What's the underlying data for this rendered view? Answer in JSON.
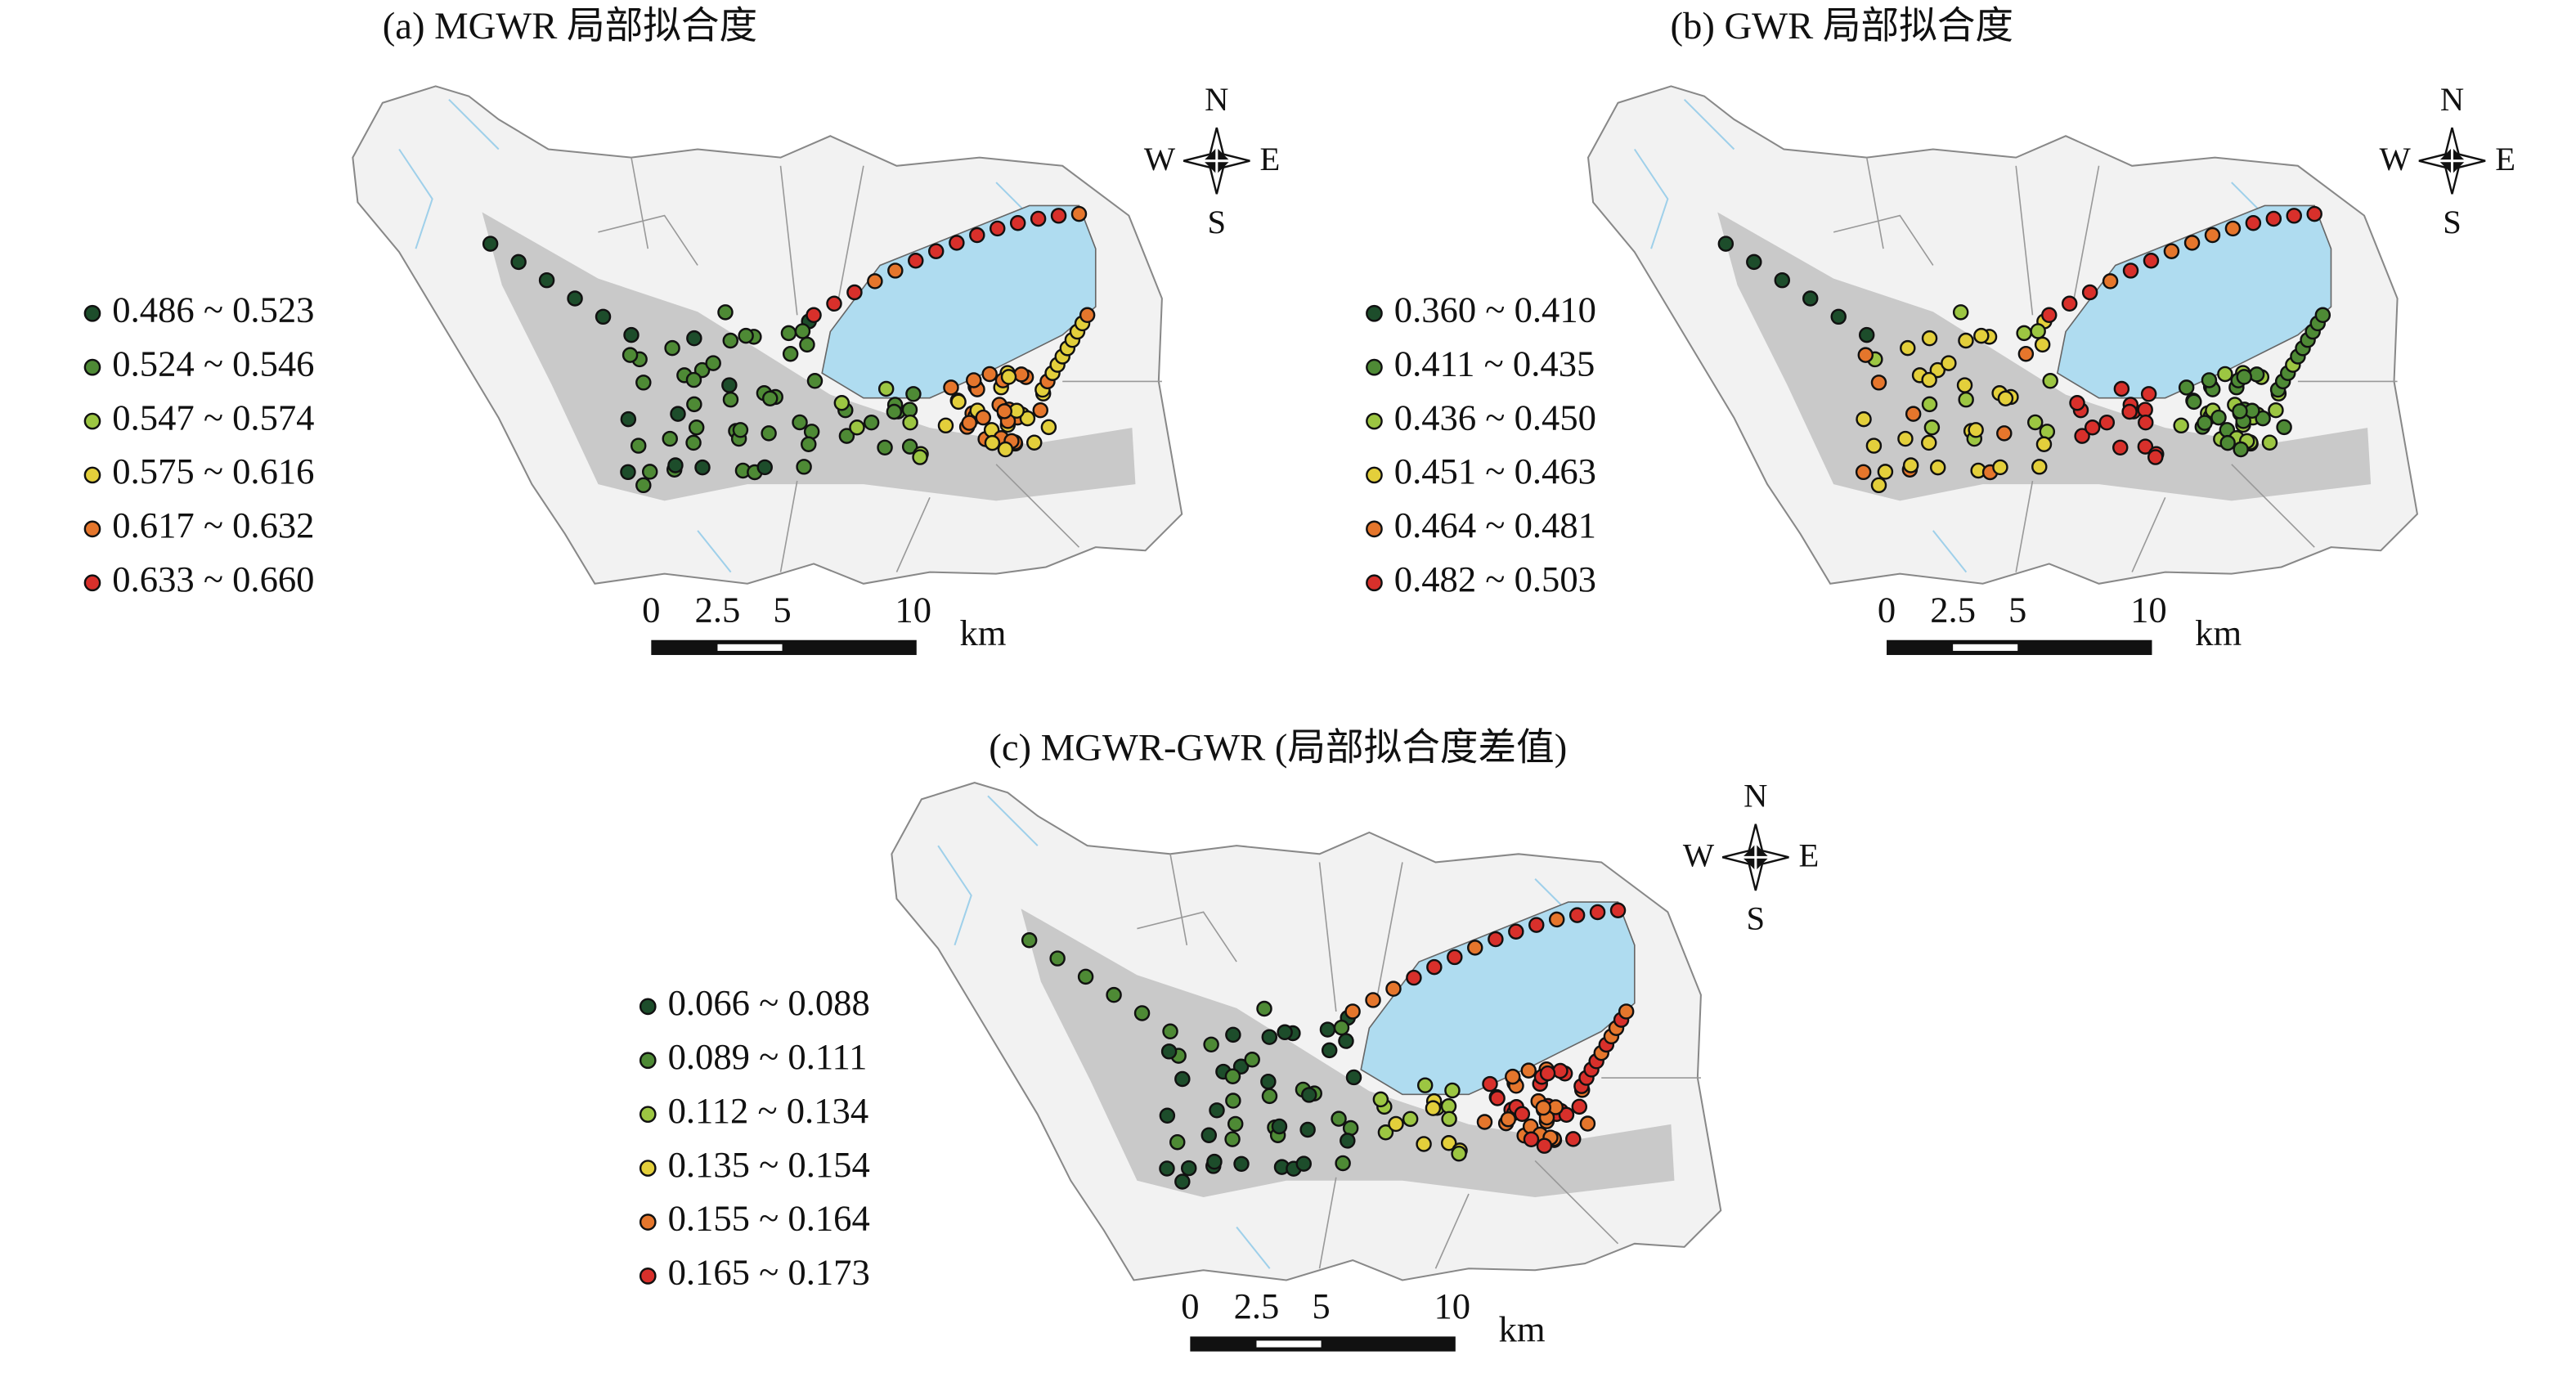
{
  "panels": [
    {
      "title": "(a) MGWR 局部拟合度",
      "legend": [
        {
          "label": "0.486 ~ 0.523",
          "color": "#1d4d2b"
        },
        {
          "label": "0.524 ~ 0.546",
          "color": "#4e8a35"
        },
        {
          "label": "0.547 ~ 0.574",
          "color": "#9cc642"
        },
        {
          "label": "0.575 ~ 0.616",
          "color": "#e3cf3b"
        },
        {
          "label": "0.617 ~ 0.632",
          "color": "#e5762c"
        },
        {
          "label": "0.633 ~ 0.660",
          "color": "#d8302b"
        }
      ],
      "compass": {
        "north": "N",
        "south": "S",
        "west": "W",
        "east": "E"
      },
      "scale": {
        "ticks": [
          "0",
          "2.5",
          "5",
          "10"
        ],
        "unit": "km"
      }
    },
    {
      "title": "(b) GWR 局部拟合度",
      "legend": [
        {
          "label": "0.360 ~ 0.410",
          "color": "#1d4d2b"
        },
        {
          "label": "0.411 ~ 0.435",
          "color": "#4e8a35"
        },
        {
          "label": "0.436 ~ 0.450",
          "color": "#9cc642"
        },
        {
          "label": "0.451 ~ 0.463",
          "color": "#e3cf3b"
        },
        {
          "label": "0.464 ~ 0.481",
          "color": "#e5762c"
        },
        {
          "label": "0.482 ~ 0.503",
          "color": "#d8302b"
        }
      ],
      "compass": {
        "north": "N",
        "south": "S",
        "west": "W",
        "east": "E"
      },
      "scale": {
        "ticks": [
          "0",
          "2.5",
          "5",
          "10"
        ],
        "unit": "km"
      }
    },
    {
      "title": "(c) MGWR-GWR (局部拟合度差值)",
      "legend": [
        {
          "label": "0.066 ~ 0.088",
          "color": "#1d4d2b"
        },
        {
          "label": "0.089 ~ 0.111",
          "color": "#4e8a35"
        },
        {
          "label": "0.112 ~ 0.134",
          "color": "#9cc642"
        },
        {
          "label": "0.135 ~ 0.154",
          "color": "#e3cf3b"
        },
        {
          "label": "0.155 ~ 0.164",
          "color": "#e5762c"
        },
        {
          "label": "0.165 ~ 0.173",
          "color": "#d8302b"
        }
      ],
      "compass": {
        "north": "N",
        "south": "S",
        "west": "W",
        "east": "E"
      },
      "scale": {
        "ticks": [
          "0",
          "2.5",
          "5",
          "10"
        ],
        "unit": "km"
      }
    }
  ]
}
